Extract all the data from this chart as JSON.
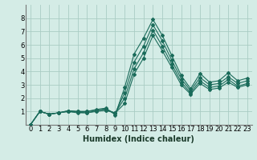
{
  "xlabel": "Humidex (Indice chaleur)",
  "bg_color": "#d4ece6",
  "grid_color": "#aaccc4",
  "line_color": "#1a6b5a",
  "xlim": [
    -0.5,
    23.5
  ],
  "ylim": [
    0,
    9
  ],
  "xticks": [
    0,
    1,
    2,
    3,
    4,
    5,
    6,
    7,
    8,
    9,
    10,
    11,
    12,
    13,
    14,
    15,
    16,
    17,
    18,
    19,
    20,
    21,
    22,
    23
  ],
  "yticks": [
    1,
    2,
    3,
    4,
    5,
    6,
    7,
    8
  ],
  "series": [
    [
      0,
      1.0,
      0.8,
      0.9,
      1.05,
      1.0,
      1.0,
      1.15,
      1.25,
      0.75,
      2.8,
      5.3,
      6.5,
      7.9,
      6.7,
      5.2,
      3.7,
      2.7,
      3.85,
      3.2,
      3.3,
      3.9,
      3.3,
      3.5
    ],
    [
      0,
      1.0,
      0.8,
      0.9,
      1.05,
      1.0,
      1.0,
      1.1,
      1.2,
      0.85,
      2.4,
      4.7,
      5.9,
      7.5,
      6.3,
      4.85,
      3.45,
      2.55,
      3.55,
      3.0,
      3.1,
      3.6,
      3.1,
      3.3
    ],
    [
      0,
      1.0,
      0.8,
      0.9,
      1.0,
      0.95,
      0.9,
      1.05,
      1.1,
      0.88,
      2.0,
      4.2,
      5.4,
      7.1,
      5.9,
      4.55,
      3.2,
      2.4,
      3.3,
      2.8,
      2.9,
      3.4,
      2.9,
      3.1
    ],
    [
      0,
      1.0,
      0.8,
      0.9,
      1.0,
      0.9,
      0.9,
      1.0,
      1.1,
      0.88,
      1.6,
      3.8,
      5.0,
      6.7,
      5.55,
      4.3,
      3.0,
      2.3,
      3.1,
      2.65,
      2.75,
      3.2,
      2.8,
      3.0
    ]
  ],
  "xlabel_fontsize": 7,
  "tick_fontsize": 6
}
